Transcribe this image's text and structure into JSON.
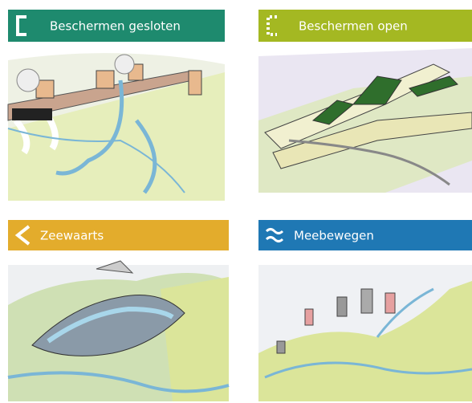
{
  "panels": [
    {
      "title": "Beschermen gesloten"
    },
    {
      "title": "Beschermen open"
    },
    {
      "title": "Zeewaarts"
    },
    {
      "title": "Meebewegen"
    }
  ]
}
